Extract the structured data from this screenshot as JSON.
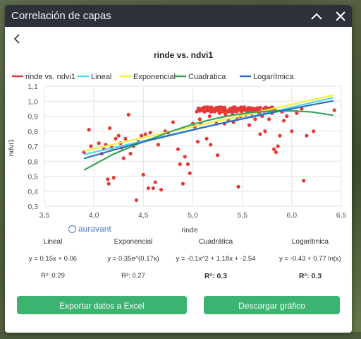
{
  "window": {
    "title": "Correlación de capas",
    "collapse_icon": "chevron-up-icon",
    "close_icon": "close-icon",
    "back_icon": "chevron-left-icon"
  },
  "chart_data": {
    "type": "scatter",
    "title": "rinde vs. ndvi1",
    "xlabel": "rinde",
    "ylabel": "ndvi1",
    "xlim": [
      3.5,
      6.5
    ],
    "ylim": [
      0.3,
      1.1
    ],
    "x_ticks": [
      "3,5",
      "4,0",
      "4,5",
      "5,0",
      "5,5",
      "6,0",
      "6,5"
    ],
    "y_ticks": [
      "0,3",
      "0,4",
      "0,5",
      "0,6",
      "0,7",
      "0,8",
      "0,9",
      "1,0",
      "1,1"
    ],
    "grid": true,
    "legend_position": "top",
    "series": [
      {
        "name": "rinde vs. ndvi1",
        "kind": "scatter",
        "color": "#e53935"
      },
      {
        "name": "Lineal",
        "kind": "line",
        "color": "#4dd9e8",
        "x": [
          3.9,
          6.42
        ],
        "y": [
          0.645,
          1.023
        ]
      },
      {
        "name": "Exponencial",
        "kind": "line",
        "color": "#f2f23a",
        "x": [
          3.9,
          6.42
        ],
        "y": [
          0.668,
          1.04
        ]
      },
      {
        "name": "Cuadrática",
        "kind": "line",
        "color": "#3aa35a",
        "x": [
          3.9,
          4.2,
          4.5,
          4.8,
          5.0,
          5.2,
          5.4,
          5.6,
          5.8,
          6.0,
          6.2,
          6.42
        ],
        "y": [
          0.541,
          0.648,
          0.73,
          0.803,
          0.846,
          0.88,
          0.907,
          0.925,
          0.934,
          0.936,
          0.928,
          0.906
        ]
      },
      {
        "name": "Logarítmica",
        "kind": "line",
        "color": "#2d6fc4",
        "x": [
          3.9,
          4.2,
          4.5,
          4.8,
          5.1,
          5.4,
          5.7,
          6.0,
          6.2,
          6.42
        ],
        "y": [
          0.618,
          0.675,
          0.729,
          0.777,
          0.824,
          0.868,
          0.91,
          0.949,
          0.975,
          1.002
        ]
      }
    ],
    "points": [
      [
        3.9,
        0.66
      ],
      [
        3.95,
        0.81
      ],
      [
        3.97,
        0.7
      ],
      [
        4.05,
        0.72
      ],
      [
        4.08,
        0.65
      ],
      [
        4.1,
        0.68
      ],
      [
        4.12,
        0.71
      ],
      [
        4.14,
        0.48
      ],
      [
        4.15,
        0.45
      ],
      [
        4.16,
        0.82
      ],
      [
        4.18,
        0.69
      ],
      [
        4.2,
        0.49
      ],
      [
        4.22,
        0.75
      ],
      [
        4.25,
        0.77
      ],
      [
        4.27,
        0.72
      ],
      [
        4.28,
        0.69
      ],
      [
        4.3,
        0.62
      ],
      [
        4.32,
        0.75
      ],
      [
        4.35,
        0.91
      ],
      [
        4.37,
        0.65
      ],
      [
        4.4,
        0.7
      ],
      [
        4.43,
        0.34
      ],
      [
        4.45,
        0.73
      ],
      [
        4.48,
        0.77
      ],
      [
        4.5,
        0.51
      ],
      [
        4.52,
        0.78
      ],
      [
        4.55,
        0.42
      ],
      [
        4.57,
        0.79
      ],
      [
        4.6,
        0.42
      ],
      [
        4.62,
        0.46
      ],
      [
        4.65,
        0.71
      ],
      [
        4.68,
        0.41
      ],
      [
        4.72,
        0.8
      ],
      [
        4.75,
        0.79
      ],
      [
        4.8,
        0.86
      ],
      [
        4.85,
        0.68
      ],
      [
        4.87,
        0.58
      ],
      [
        4.9,
        0.45
      ],
      [
        4.92,
        0.63
      ],
      [
        4.95,
        0.58
      ],
      [
        4.97,
        0.52
      ],
      [
        5.0,
        0.85
      ],
      [
        5.02,
        0.83
      ],
      [
        5.04,
        0.93
      ],
      [
        5.05,
        0.73
      ],
      [
        5.07,
        0.88
      ],
      [
        5.08,
        0.85
      ],
      [
        5.1,
        0.95
      ],
      [
        5.12,
        0.93
      ],
      [
        5.14,
        0.75
      ],
      [
        5.15,
        0.96
      ],
      [
        5.17,
        0.9
      ],
      [
        5.18,
        0.71
      ],
      [
        5.2,
        0.95
      ],
      [
        5.22,
        0.93
      ],
      [
        5.24,
        0.85
      ],
      [
        5.25,
        0.64
      ],
      [
        5.27,
        0.92
      ],
      [
        5.28,
        0.96
      ],
      [
        5.3,
        0.94
      ],
      [
        5.32,
        0.85
      ],
      [
        5.33,
        0.91
      ],
      [
        5.35,
        0.93
      ],
      [
        5.36,
        0.87
      ],
      [
        5.38,
        0.95
      ],
      [
        5.4,
        0.92
      ],
      [
        5.41,
        0.86
      ],
      [
        5.42,
        0.96
      ],
      [
        5.44,
        0.93
      ],
      [
        5.45,
        0.88
      ],
      [
        5.46,
        0.43
      ],
      [
        5.47,
        0.95
      ],
      [
        5.48,
        0.9
      ],
      [
        5.5,
        0.94
      ],
      [
        5.52,
        0.96
      ],
      [
        5.53,
        0.91
      ],
      [
        5.55,
        0.93
      ],
      [
        5.57,
        0.84
      ],
      [
        5.58,
        0.95
      ],
      [
        5.6,
        0.9
      ],
      [
        5.62,
        0.94
      ],
      [
        5.63,
        0.88
      ],
      [
        5.65,
        0.95
      ],
      [
        5.67,
        0.92
      ],
      [
        5.68,
        0.78
      ],
      [
        5.7,
        0.9
      ],
      [
        5.72,
        0.95
      ],
      [
        5.73,
        0.8
      ],
      [
        5.75,
        0.94
      ],
      [
        5.77,
        0.88
      ],
      [
        5.8,
        0.92
      ],
      [
        5.82,
        0.68
      ],
      [
        5.84,
        0.66
      ],
      [
        5.86,
        0.7
      ],
      [
        5.88,
        0.77
      ],
      [
        5.9,
        0.93
      ],
      [
        5.92,
        0.87
      ],
      [
        5.95,
        0.9
      ],
      [
        5.98,
        0.95
      ],
      [
        6.0,
        0.8
      ],
      [
        6.05,
        0.92
      ],
      [
        6.1,
        0.95
      ],
      [
        6.12,
        0.47
      ],
      [
        6.15,
        0.77
      ],
      [
        6.22,
        0.8
      ],
      [
        6.43,
        0.94
      ]
    ],
    "dense_points": {
      "count": 120,
      "x": [
        5.05,
        5.85
      ],
      "y": [
        0.93,
        0.96
      ]
    }
  },
  "watermark": "auravant",
  "stats": [
    {
      "name": "Lineal",
      "equation": "y = 0.15x + 0.06",
      "r2": "R²: 0.29",
      "bold": false
    },
    {
      "name": "Exponencial",
      "equation": "y = 0.35e^(0.17x)",
      "r2": "R²: 0.27",
      "bold": false
    },
    {
      "name": "Cuadrática",
      "equation": "y = -0.1x^2 + 1.18x + -2.54",
      "r2": "R²: 0.3",
      "bold": true
    },
    {
      "name": "Logarítmica",
      "equation": "y = -0.43 + 0.77 ln(x)",
      "r2": "R²: 0.3",
      "bold": true
    }
  ],
  "buttons": {
    "export": "Exportar datos a Excel",
    "download": "Descargar gráfico"
  }
}
